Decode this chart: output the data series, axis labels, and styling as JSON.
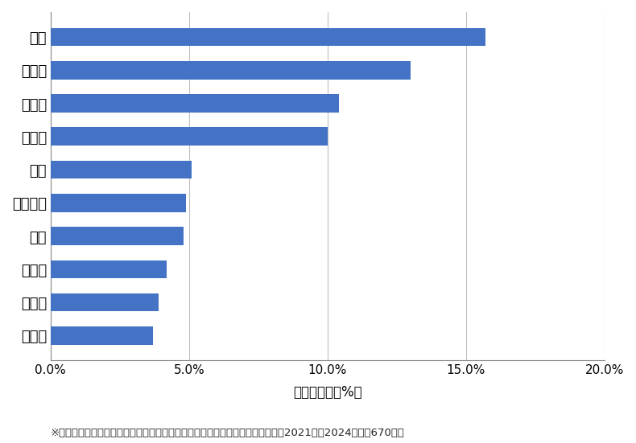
{
  "categories": [
    "南大塚",
    "南長崎",
    "北大塚",
    "駒込",
    "池袋本町",
    "巣鴨",
    "南池袋",
    "西池袋",
    "東池袋",
    "池袋"
  ],
  "values": [
    3.7,
    3.9,
    4.2,
    4.8,
    4.9,
    5.1,
    10.0,
    10.4,
    13.0,
    15.7
  ],
  "bar_color": "#4472C4",
  "xlim": [
    0,
    20.0
  ],
  "xticks": [
    0,
    5.0,
    10.0,
    15.0,
    20.0
  ],
  "xlabel": "件数の割合（%）",
  "footnote": "※弊社受付の案件を対象に、受付時に市区町村の回答があったものを集計（期間2021年～2024年、計670件）",
  "background_color": "#ffffff",
  "bar_height": 0.55,
  "grid_color": "#c0c0c0",
  "label_fontsize": 13,
  "tick_fontsize": 11,
  "xlabel_fontsize": 12,
  "footnote_fontsize": 9.5
}
